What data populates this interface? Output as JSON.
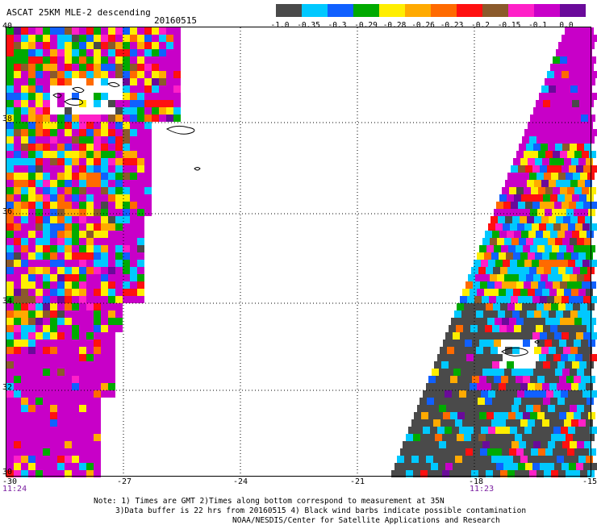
{
  "header": {
    "title": "ASCAT 25KM MLE-2 descending",
    "date": "20160515"
  },
  "colorbar": {
    "colors": [
      "#4a4a4a",
      "#00c8ff",
      "#1060ff",
      "#00aa00",
      "#ffee00",
      "#ffaa00",
      "#ff6a00",
      "#ff1010",
      "#8b5a2b",
      "#ff20c8",
      "#c800c8",
      "#6a0a9a"
    ],
    "ticks": [
      "-1.0",
      "-0.35",
      "-0.3",
      "-0.29",
      "-0.28",
      "-0.26",
      "-0.23",
      "-0.2",
      "-0.15",
      "-0.1",
      "0.0"
    ]
  },
  "axes": {
    "lat_labels": [
      "40",
      "38",
      "36",
      "34",
      "32",
      "30"
    ],
    "lon_labels": [
      "-30",
      "-27",
      "-24",
      "-21",
      "-18",
      "-15"
    ]
  },
  "times": {
    "left": "11:24",
    "right": "11:23"
  },
  "footer": {
    "line1": "Note: 1) Times are GMT 2)Times along bottom correspond to measurement at 35N",
    "line2": "3)Data buffer is 22 hrs from 20160515 4) Black wind barbs indicate possible contamination",
    "line3": "NOAA/NESDIS/Center for Satellite Applications and Research"
  }
}
